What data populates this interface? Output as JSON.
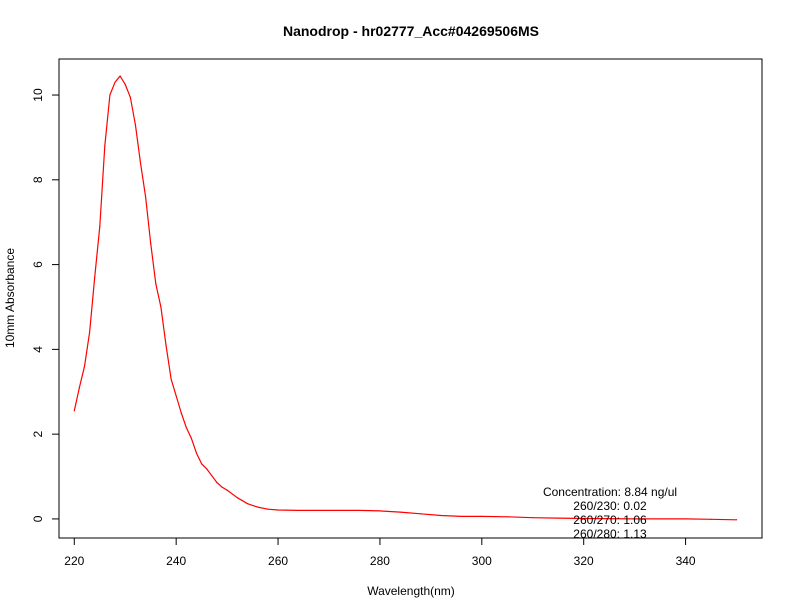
{
  "chart_data": {
    "type": "line",
    "title": "Nanodrop - hr02777_Acc#04269506MS",
    "xlabel": "Wavelength(nm)",
    "ylabel": "10mm Absorbance",
    "xlim": [
      217,
      355
    ],
    "ylim": [
      -0.45,
      10.85
    ],
    "x_ticks": [
      220,
      240,
      260,
      280,
      300,
      320,
      340
    ],
    "y_ticks": [
      0,
      2,
      4,
      6,
      8,
      10
    ],
    "grid": false,
    "line_color": "#ff0000",
    "annotations": [
      "Concentration: 8.84 ng/ul",
      "260/230: 0.02",
      "260/270: 1.06",
      "260/280: 1.13"
    ],
    "series": [
      {
        "x": [
          220,
          221,
          222,
          223,
          224,
          225,
          226,
          227,
          228,
          229,
          230,
          231,
          232,
          233,
          234,
          235,
          236,
          237,
          238,
          239,
          240,
          241,
          242,
          243,
          244,
          245,
          246,
          247,
          248,
          249,
          250,
          252,
          254,
          256,
          258,
          260,
          264,
          268,
          272,
          276,
          280,
          284,
          288,
          292,
          296,
          300,
          305,
          310,
          315,
          320,
          330,
          340,
          345,
          350
        ],
        "values": [
          2.55,
          3.1,
          3.6,
          4.4,
          5.7,
          6.9,
          8.8,
          10.0,
          10.3,
          10.45,
          10.25,
          9.95,
          9.3,
          8.4,
          7.6,
          6.5,
          5.55,
          5.0,
          4.1,
          3.3,
          2.9,
          2.5,
          2.15,
          1.9,
          1.55,
          1.3,
          1.18,
          1.02,
          0.86,
          0.75,
          0.68,
          0.5,
          0.36,
          0.28,
          0.23,
          0.21,
          0.2,
          0.2,
          0.2,
          0.2,
          0.19,
          0.16,
          0.12,
          0.08,
          0.06,
          0.06,
          0.05,
          0.03,
          0.02,
          0.01,
          0.0,
          0.0,
          -0.01,
          -0.02
        ]
      }
    ]
  }
}
